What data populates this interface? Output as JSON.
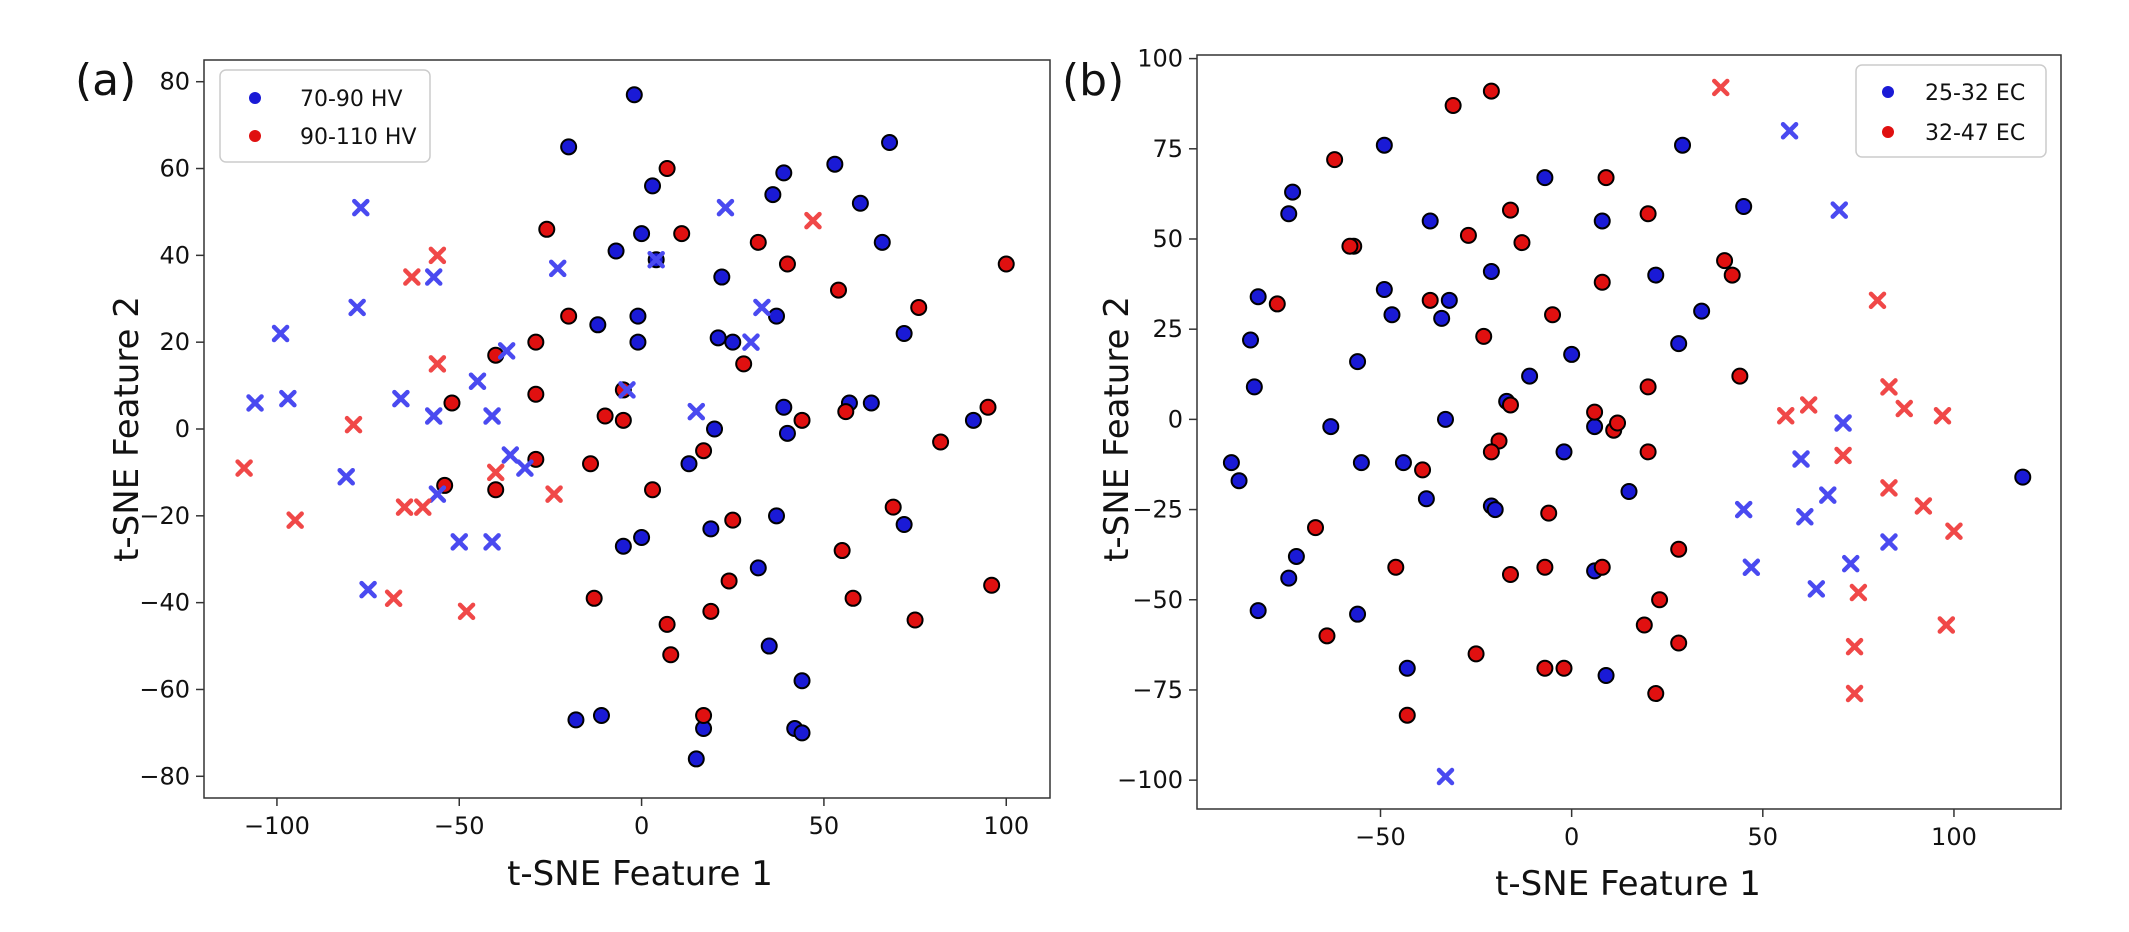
{
  "chart_data": [
    {
      "type": "scatter",
      "panel_label": "(a)",
      "xlabel": "t-SNE Feature 1",
      "ylabel": "t-SNE Feature 2",
      "xlim": [
        -120,
        112
      ],
      "ylim": [
        -85,
        85
      ],
      "xticks": [
        -100,
        -50,
        0,
        50,
        100
      ],
      "yticks": [
        -80,
        -60,
        -40,
        -20,
        0,
        20,
        40,
        60,
        80
      ],
      "grid": false,
      "legend_position": "top-left",
      "series": [
        {
          "name": "70-90 HV",
          "color": "#1a1ad6",
          "marker": "circle",
          "points": [
            [
              -20,
              65
            ],
            [
              -2,
              77
            ],
            [
              68,
              66
            ],
            [
              3,
              56
            ],
            [
              39,
              59
            ],
            [
              53,
              61
            ],
            [
              60,
              52
            ],
            [
              36,
              54
            ],
            [
              66,
              43
            ],
            [
              -7,
              41
            ],
            [
              4,
              39
            ],
            [
              0,
              45
            ],
            [
              -12,
              24
            ],
            [
              -1,
              26
            ],
            [
              22,
              35
            ],
            [
              25,
              20
            ],
            [
              37,
              26
            ],
            [
              -1,
              20
            ],
            [
              21,
              21
            ],
            [
              72,
              22
            ],
            [
              39,
              5
            ],
            [
              57,
              6
            ],
            [
              63,
              6
            ],
            [
              40,
              -1
            ],
            [
              91,
              2
            ],
            [
              20,
              0
            ],
            [
              13,
              -8
            ],
            [
              37,
              -20
            ],
            [
              72,
              -22
            ],
            [
              19,
              -23
            ],
            [
              -5,
              -27
            ],
            [
              0,
              -25
            ],
            [
              32,
              -32
            ],
            [
              35,
              -50
            ],
            [
              44,
              -58
            ],
            [
              -18,
              -67
            ],
            [
              -11,
              -66
            ],
            [
              17,
              -69
            ],
            [
              42,
              -69
            ],
            [
              44,
              -70
            ],
            [
              15,
              -76
            ]
          ]
        },
        {
          "name": "90-110 HV",
          "color": "#e01010",
          "marker": "circle",
          "points": [
            [
              7,
              60
            ],
            [
              -26,
              46
            ],
            [
              11,
              45
            ],
            [
              32,
              43
            ],
            [
              40,
              38
            ],
            [
              100,
              38
            ],
            [
              54,
              32
            ],
            [
              76,
              28
            ],
            [
              -20,
              26
            ],
            [
              -29,
              20
            ],
            [
              28,
              15
            ],
            [
              -40,
              17
            ],
            [
              -29,
              8
            ],
            [
              -5,
              9
            ],
            [
              -52,
              6
            ],
            [
              -10,
              3
            ],
            [
              -5,
              2
            ],
            [
              56,
              4
            ],
            [
              95,
              5
            ],
            [
              44,
              2
            ],
            [
              82,
              -3
            ],
            [
              17,
              -5
            ],
            [
              -29,
              -7
            ],
            [
              -14,
              -8
            ],
            [
              -54,
              -13
            ],
            [
              -40,
              -14
            ],
            [
              3,
              -14
            ],
            [
              69,
              -18
            ],
            [
              25,
              -21
            ],
            [
              55,
              -28
            ],
            [
              24,
              -35
            ],
            [
              96,
              -36
            ],
            [
              -13,
              -39
            ],
            [
              58,
              -39
            ],
            [
              19,
              -42
            ],
            [
              7,
              -45
            ],
            [
              75,
              -44
            ],
            [
              8,
              -52
            ],
            [
              17,
              -66
            ]
          ]
        },
        {
          "name": "",
          "color": "#4a4af0",
          "marker": "x",
          "points": [
            [
              -77,
              51
            ],
            [
              23,
              51
            ],
            [
              -78,
              28
            ],
            [
              -23,
              37
            ],
            [
              -57,
              35
            ],
            [
              4,
              39
            ],
            [
              33,
              28
            ],
            [
              -99,
              22
            ],
            [
              30,
              20
            ],
            [
              -37,
              18
            ],
            [
              -45,
              11
            ],
            [
              -4,
              9
            ],
            [
              -106,
              6
            ],
            [
              -97,
              7
            ],
            [
              -66,
              7
            ],
            [
              -57,
              3
            ],
            [
              -41,
              3
            ],
            [
              15,
              4
            ],
            [
              -36,
              -6
            ],
            [
              -32,
              -9
            ],
            [
              -81,
              -11
            ],
            [
              -56,
              -15
            ],
            [
              -75,
              -37
            ],
            [
              -50,
              -26
            ],
            [
              -41,
              -26
            ]
          ]
        },
        {
          "name": "",
          "color": "#f04848",
          "marker": "x",
          "points": [
            [
              47,
              48
            ],
            [
              -63,
              35
            ],
            [
              -56,
              40
            ],
            [
              -56,
              15
            ],
            [
              -79,
              1
            ],
            [
              -109,
              -9
            ],
            [
              -95,
              -21
            ],
            [
              -65,
              -18
            ],
            [
              -60,
              -18
            ],
            [
              -24,
              -15
            ],
            [
              -40,
              -10
            ],
            [
              -68,
              -39
            ],
            [
              -48,
              -42
            ]
          ]
        }
      ]
    },
    {
      "type": "scatter",
      "panel_label": "(b)",
      "xlabel": "t-SNE Feature 1",
      "ylabel": "t-SNE Feature 2",
      "xlim": [
        -98,
        128
      ],
      "ylim": [
        -108,
        101
      ],
      "xticks": [
        -50,
        0,
        50,
        100
      ],
      "yticks": [
        -100,
        -75,
        -50,
        -25,
        0,
        25,
        50,
        75,
        100
      ],
      "grid": false,
      "legend_position": "top-right",
      "series": [
        {
          "name": "25-32 EC",
          "color": "#1a1ad6",
          "marker": "circle",
          "points": [
            [
              -49,
              76
            ],
            [
              -73,
              63
            ],
            [
              -74,
              57
            ],
            [
              -7,
              67
            ],
            [
              8,
              55
            ],
            [
              29,
              76
            ],
            [
              45,
              59
            ],
            [
              -37,
              55
            ],
            [
              -21,
              41
            ],
            [
              22,
              40
            ],
            [
              -82,
              34
            ],
            [
              -49,
              36
            ],
            [
              -32,
              33
            ],
            [
              -47,
              29
            ],
            [
              -34,
              28
            ],
            [
              -84,
              22
            ],
            [
              34,
              30
            ],
            [
              28,
              21
            ],
            [
              -56,
              16
            ],
            [
              0,
              18
            ],
            [
              -11,
              12
            ],
            [
              -83,
              9
            ],
            [
              -17,
              5
            ],
            [
              -33,
              0
            ],
            [
              -63,
              -2
            ],
            [
              6,
              -2
            ],
            [
              -2,
              -9
            ],
            [
              -55,
              -12
            ],
            [
              -44,
              -12
            ],
            [
              -89,
              -12
            ],
            [
              -87,
              -17
            ],
            [
              -38,
              -22
            ],
            [
              -21,
              -24
            ],
            [
              -20,
              -25
            ],
            [
              15,
              -20
            ],
            [
              -72,
              -38
            ],
            [
              -74,
              -44
            ],
            [
              -82,
              -53
            ],
            [
              -56,
              -54
            ],
            [
              6,
              -42
            ],
            [
              -43,
              -69
            ],
            [
              9,
              -71
            ],
            [
              118,
              -16
            ]
          ]
        },
        {
          "name": "32-47 EC",
          "color": "#e01010",
          "marker": "circle",
          "points": [
            [
              -21,
              91
            ],
            [
              -31,
              87
            ],
            [
              -62,
              72
            ],
            [
              9,
              67
            ],
            [
              -16,
              58
            ],
            [
              20,
              57
            ],
            [
              -27,
              51
            ],
            [
              -13,
              49
            ],
            [
              -57,
              48
            ],
            [
              -58,
              48
            ],
            [
              40,
              44
            ],
            [
              42,
              40
            ],
            [
              8,
              38
            ],
            [
              -77,
              32
            ],
            [
              -37,
              33
            ],
            [
              -5,
              29
            ],
            [
              -23,
              23
            ],
            [
              44,
              12
            ],
            [
              20,
              9
            ],
            [
              6,
              2
            ],
            [
              11,
              -3
            ],
            [
              12,
              -1
            ],
            [
              -16,
              4
            ],
            [
              -19,
              -6
            ],
            [
              -21,
              -9
            ],
            [
              20,
              -9
            ],
            [
              -39,
              -14
            ],
            [
              -6,
              -26
            ],
            [
              -67,
              -30
            ],
            [
              28,
              -36
            ],
            [
              -46,
              -41
            ],
            [
              -7,
              -41
            ],
            [
              8,
              -41
            ],
            [
              -16,
              -43
            ],
            [
              23,
              -50
            ],
            [
              19,
              -57
            ],
            [
              28,
              -62
            ],
            [
              -64,
              -60
            ],
            [
              -25,
              -65
            ],
            [
              -7,
              -69
            ],
            [
              -2,
              -69
            ],
            [
              22,
              -76
            ],
            [
              -43,
              -82
            ]
          ]
        },
        {
          "name": "",
          "color": "#4a4af0",
          "marker": "x",
          "points": [
            [
              57,
              80
            ],
            [
              70,
              58
            ],
            [
              60,
              -11
            ],
            [
              71,
              -1
            ],
            [
              67,
              -21
            ],
            [
              61,
              -27
            ],
            [
              45,
              -25
            ],
            [
              47,
              -41
            ],
            [
              64,
              -47
            ],
            [
              73,
              -40
            ],
            [
              83,
              -34
            ],
            [
              -33,
              -99
            ]
          ]
        },
        {
          "name": "",
          "color": "#f04848",
          "marker": "x",
          "points": [
            [
              39,
              92
            ],
            [
              80,
              33
            ],
            [
              83,
              9
            ],
            [
              87,
              3
            ],
            [
              97,
              1
            ],
            [
              56,
              1
            ],
            [
              62,
              4
            ],
            [
              71,
              -10
            ],
            [
              83,
              -19
            ],
            [
              92,
              -24
            ],
            [
              100,
              -31
            ],
            [
              75,
              -48
            ],
            [
              98,
              -57
            ],
            [
              74,
              -63
            ],
            [
              74,
              -76
            ]
          ]
        }
      ]
    }
  ]
}
